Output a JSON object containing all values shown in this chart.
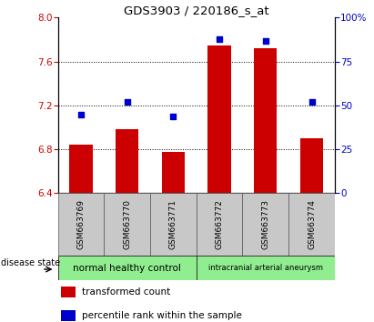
{
  "title": "GDS3903 / 220186_s_at",
  "samples": [
    "GSM663769",
    "GSM663770",
    "GSM663771",
    "GSM663772",
    "GSM663773",
    "GSM663774"
  ],
  "transformed_count": [
    6.84,
    6.98,
    6.78,
    7.75,
    7.72,
    6.9
  ],
  "percentile_rank": [
    45,
    52,
    44,
    88,
    87,
    52
  ],
  "ylim_left": [
    6.4,
    8.0
  ],
  "ylim_right": [
    0,
    100
  ],
  "yticks_left": [
    6.4,
    6.8,
    7.2,
    7.6,
    8.0
  ],
  "yticks_right": [
    0,
    25,
    50,
    75,
    100
  ],
  "bar_color": "#cc0000",
  "scatter_color": "#0000cc",
  "bar_width": 0.5,
  "groups": [
    {
      "label": "normal healthy control",
      "start": 0,
      "end": 3,
      "color": "#90ee90"
    },
    {
      "label": "intracranial arterial aneurysm",
      "start": 3,
      "end": 6,
      "color": "#90ee90"
    }
  ],
  "disease_state_label": "disease state",
  "legend_bar_label": "transformed count",
  "legend_scatter_label": "percentile rank within the sample",
  "grid_color": "black",
  "ytick_left_color": "#cc0000",
  "ytick_right_color": "#0000cc",
  "bar_bottom": 6.4,
  "xticklabel_box_color": "#c8c8c8",
  "plot_bg_color": "#ffffff",
  "right_tick_labels": [
    "0",
    "25",
    "50",
    "75",
    "100%"
  ]
}
